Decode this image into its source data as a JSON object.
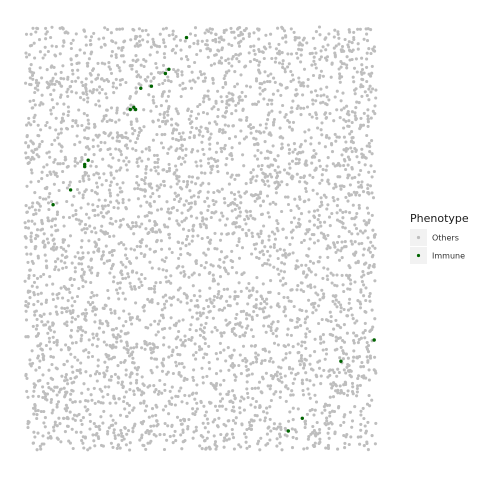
{
  "chart_data": {
    "type": "scatter",
    "title": "",
    "xlabel": "",
    "ylabel": "",
    "grid": false,
    "axes_visible": false,
    "legend": {
      "title": "Phenotype",
      "placement": "right",
      "entries": [
        {
          "label": "Others",
          "color": "#bebebe"
        },
        {
          "label": "Immune",
          "color": "#006400"
        }
      ]
    },
    "background_points": {
      "series": "Others",
      "approx_count": 4200,
      "distribution": "uniform random across the full field"
    },
    "series": [
      {
        "name": "Immune",
        "color": "#006400",
        "points": [
          [
            0.46,
            0.025
          ],
          [
            0.4,
            0.11
          ],
          [
            0.41,
            0.1
          ],
          [
            0.33,
            0.145
          ],
          [
            0.36,
            0.14
          ],
          [
            0.31,
            0.19
          ],
          [
            0.315,
            0.195
          ],
          [
            0.3,
            0.195
          ],
          [
            0.18,
            0.315
          ],
          [
            0.17,
            0.325
          ],
          [
            0.17,
            0.33
          ],
          [
            0.13,
            0.385
          ],
          [
            0.08,
            0.42
          ],
          [
            0.995,
            0.74
          ],
          [
            0.9,
            0.79
          ],
          [
            0.79,
            0.925
          ],
          [
            0.75,
            0.955
          ]
        ]
      }
    ],
    "xlim": [
      0,
      1
    ],
    "ylim": [
      0,
      1
    ]
  }
}
